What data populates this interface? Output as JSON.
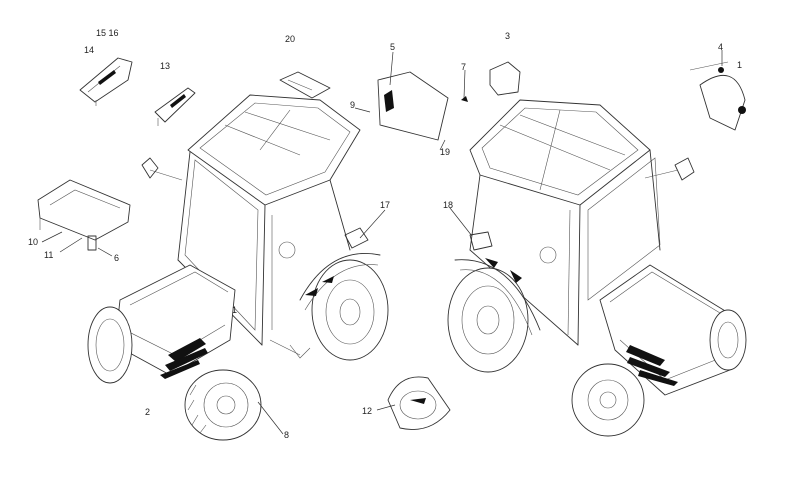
{
  "callouts": [
    {
      "id": "c1",
      "text": "1"
    },
    {
      "id": "c1b",
      "text": "1"
    },
    {
      "id": "c2",
      "text": "2"
    },
    {
      "id": "c3",
      "text": "3"
    },
    {
      "id": "c4",
      "text": "4"
    },
    {
      "id": "c5",
      "text": "5"
    },
    {
      "id": "c6",
      "text": "6"
    },
    {
      "id": "c7",
      "text": "7"
    },
    {
      "id": "c8",
      "text": "8"
    },
    {
      "id": "c9",
      "text": "9"
    },
    {
      "id": "c10",
      "text": "10"
    },
    {
      "id": "c11",
      "text": "11"
    },
    {
      "id": "c12",
      "text": "12"
    },
    {
      "id": "c13",
      "text": "13"
    },
    {
      "id": "c14",
      "text": "14"
    },
    {
      "id": "c15",
      "text": "15 16"
    },
    {
      "id": "c17",
      "text": "17"
    },
    {
      "id": "c18",
      "text": "18"
    },
    {
      "id": "c19",
      "text": "19"
    },
    {
      "id": "c20",
      "text": "20"
    }
  ]
}
